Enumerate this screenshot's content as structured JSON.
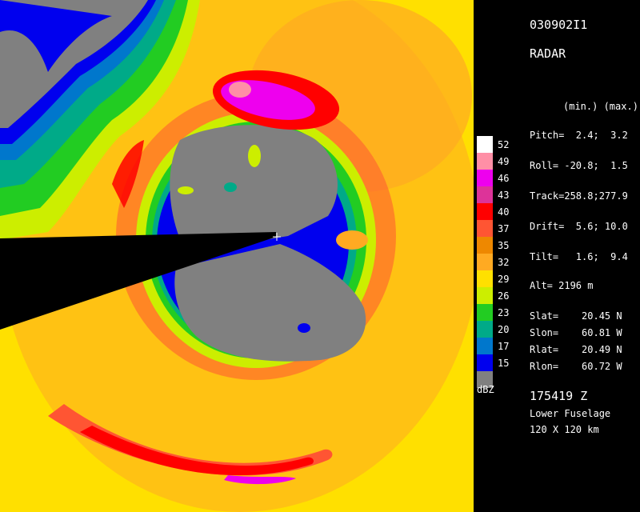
{
  "header": {
    "flight_id": "030902I1",
    "product": "RADAR"
  },
  "params": {
    "column_header": "(min.) (max.)",
    "pitch": "Pitch=  2.4;  3.2",
    "roll": "Roll= -20.8;  1.5",
    "track": "Track=258.8;277.9",
    "drift": "Drift=  5.6; 10.0",
    "tilt": "Tilt=   1.6;  9.4",
    "alt": "Alt= 2196 m",
    "slat": "Slat=    20.45 N",
    "slon": "Slon=    60.81 W",
    "rlat": "Rlat=    20.49 N",
    "rlon": "Rlon=    60.72 W"
  },
  "footer": {
    "time": "175419 Z",
    "antenna": "Lower Fuselage",
    "domain": "120 X 120 km"
  },
  "colorscale": {
    "unit": "dBZ",
    "levels": [
      {
        "label": "52",
        "color": "#ffffff"
      },
      {
        "label": "49",
        "color": "#ff8fa6"
      },
      {
        "label": "46",
        "color": "#ee00ee"
      },
      {
        "label": "43",
        "color": "#dd3399"
      },
      {
        "label": "40",
        "color": "#ff0000"
      },
      {
        "label": "37",
        "color": "#ff5533"
      },
      {
        "label": "35",
        "color": "#ee8800"
      },
      {
        "label": "32",
        "color": "#ffaa22"
      },
      {
        "label": "29",
        "color": "#ffe000"
      },
      {
        "label": "26",
        "color": "#ccee00"
      },
      {
        "label": "23",
        "color": "#22cc22"
      },
      {
        "label": "20",
        "color": "#00aa88"
      },
      {
        "label": "17",
        "color": "#0077cc"
      },
      {
        "label": "15",
        "color": "#0000ee"
      },
      {
        "label": "",
        "color": "#808080"
      }
    ]
  }
}
